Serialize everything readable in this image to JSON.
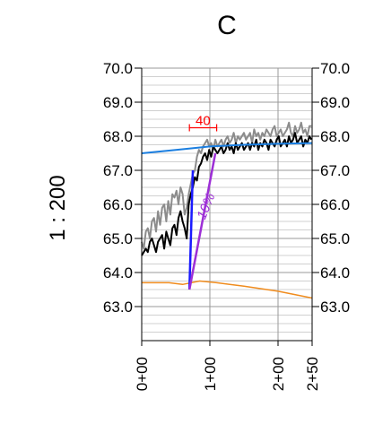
{
  "chart_data": {
    "type": "line",
    "title": "C",
    "scale_label": "1 : 200",
    "ylim": [
      62.0,
      70.0
    ],
    "xlim": [
      0,
      250
    ],
    "yticks": [
      "70.0",
      "69.0",
      "68.0",
      "67.0",
      "66.0",
      "65.0",
      "64.0",
      "63.0"
    ],
    "yticks_right": [
      "70.0",
      "69.0",
      "68.0",
      "67.0",
      "66.0",
      "65.0",
      "64.0",
      "63.0"
    ],
    "xticks": [
      {
        "value": 0,
        "label": "0+00"
      },
      {
        "value": 100,
        "label": "1+00"
      },
      {
        "value": 200,
        "label": "2+00"
      },
      {
        "value": 250,
        "label": "2+50"
      }
    ],
    "grid": true,
    "colors": {
      "gray": "#8c8c8c",
      "black": "#000000",
      "blue_line": "#1a7ee0",
      "orange_line": "#f08c1e",
      "vertical_blue": "#1a1aff",
      "purple": "#9d2fd6",
      "red": "#ff0000",
      "grid": "#c0c0c0"
    },
    "series": [
      {
        "color": "#8c8c8c",
        "x": [
          0,
          3,
          6,
          9,
          12,
          15,
          18,
          21,
          24,
          27,
          30,
          33,
          36,
          39,
          42,
          45,
          48,
          51,
          54,
          57,
          60,
          63,
          66,
          69,
          72,
          75,
          78,
          81,
          84,
          87,
          90,
          93,
          96,
          99,
          102,
          105,
          108,
          111,
          114,
          117,
          120,
          123,
          126,
          129,
          132,
          135,
          138,
          141,
          144,
          147,
          150,
          153,
          156,
          159,
          162,
          165,
          168,
          171,
          174,
          177,
          180,
          183,
          186,
          189,
          192,
          195,
          198,
          201,
          204,
          207,
          210,
          213,
          216,
          219,
          222,
          225,
          228,
          231,
          234,
          237,
          240,
          243,
          246,
          249
        ],
        "y": [
          64.9,
          64.7,
          65.2,
          65.3,
          65.0,
          65.5,
          65.6,
          65.2,
          65.8,
          65.4,
          65.9,
          66.0,
          65.5,
          66.1,
          65.7,
          66.3,
          66.2,
          66.4,
          66.0,
          66.5,
          66.3,
          65.7,
          65.9,
          66.3,
          66.6,
          66.9,
          67.0,
          67.4,
          67.6,
          67.5,
          67.7,
          67.8,
          67.9,
          67.7,
          67.8,
          67.6,
          67.9,
          67.7,
          67.8,
          67.9,
          67.7,
          67.9,
          68.0,
          67.8,
          67.9,
          68.1,
          67.8,
          68.0,
          67.9,
          68.0,
          68.1,
          67.9,
          68.0,
          68.1,
          67.8,
          68.2,
          68.0,
          68.1,
          67.9,
          68.1,
          68.0,
          68.2,
          68.1,
          68.0,
          68.2,
          68.3,
          68.0,
          68.1,
          68.2,
          68.0,
          68.1,
          68.2,
          68.4,
          68.1,
          68.0,
          68.3,
          68.1,
          68.2,
          68.4,
          68.1,
          68.2,
          68.0,
          68.3,
          68.3
        ]
      },
      {
        "color": "#000000",
        "x": [
          0,
          3,
          6,
          9,
          12,
          15,
          18,
          21,
          24,
          27,
          30,
          33,
          36,
          39,
          42,
          45,
          48,
          51,
          54,
          57,
          60,
          63,
          66,
          69,
          72,
          75,
          78,
          81,
          84,
          87,
          90,
          93,
          96,
          99,
          102,
          105,
          108,
          111,
          114,
          117,
          120,
          123,
          126,
          129,
          132,
          135,
          138,
          141,
          144,
          147,
          150,
          153,
          156,
          159,
          162,
          165,
          168,
          171,
          174,
          177,
          180,
          183,
          186,
          189,
          192,
          195,
          198,
          201,
          204,
          207,
          210,
          213,
          216,
          219,
          222,
          225,
          228,
          231,
          234,
          237,
          240,
          243,
          246,
          249
        ],
        "y": [
          64.5,
          64.6,
          64.7,
          64.6,
          64.9,
          65.0,
          64.8,
          64.6,
          64.9,
          65.0,
          65.1,
          64.7,
          65.2,
          65.0,
          64.8,
          65.3,
          65.4,
          65.1,
          65.6,
          65.8,
          65.5,
          65.3,
          65.0,
          66.0,
          66.3,
          66.5,
          66.8,
          66.7,
          67.1,
          67.2,
          67.4,
          67.5,
          67.3,
          67.6,
          67.4,
          67.7,
          67.6,
          67.5,
          67.6,
          67.7,
          67.5,
          67.6,
          67.8,
          67.6,
          67.7,
          67.5,
          67.8,
          67.6,
          67.7,
          67.8,
          67.6,
          67.7,
          67.8,
          67.6,
          67.8,
          67.7,
          67.9,
          67.6,
          67.8,
          67.7,
          67.9,
          67.8,
          67.6,
          67.9,
          67.8,
          67.7,
          67.9,
          68.0,
          67.7,
          67.8,
          67.9,
          67.7,
          68.0,
          67.8,
          67.9,
          68.1,
          67.8,
          67.9,
          68.0,
          67.7,
          67.9,
          67.8,
          68.0,
          67.9
        ]
      },
      {
        "color": "#1a7ee0",
        "x": [
          0,
          50,
          100,
          150,
          200,
          250
        ],
        "y": [
          67.5,
          67.6,
          67.7,
          67.75,
          67.78,
          67.8
        ]
      },
      {
        "color": "#f08c1e",
        "x": [
          0,
          40,
          60,
          85,
          110,
          150,
          200,
          250
        ],
        "y": [
          63.7,
          63.7,
          63.65,
          63.75,
          63.7,
          63.6,
          63.45,
          63.25
        ]
      },
      {
        "color": "#1a1aff",
        "x": [
          70,
          75
        ],
        "y": [
          63.5,
          67.0
        ]
      },
      {
        "color": "#9d2fd6",
        "x": [
          70,
          108
        ],
        "y": [
          63.5,
          67.5
        ]
      }
    ],
    "annotations": [
      {
        "text": "40",
        "color": "#ff0000",
        "x_start": 70,
        "x_end": 110,
        "y": 68.25
      },
      {
        "text": "10%",
        "color": "#9d2fd6",
        "x": 108,
        "y": 65.9
      }
    ]
  }
}
